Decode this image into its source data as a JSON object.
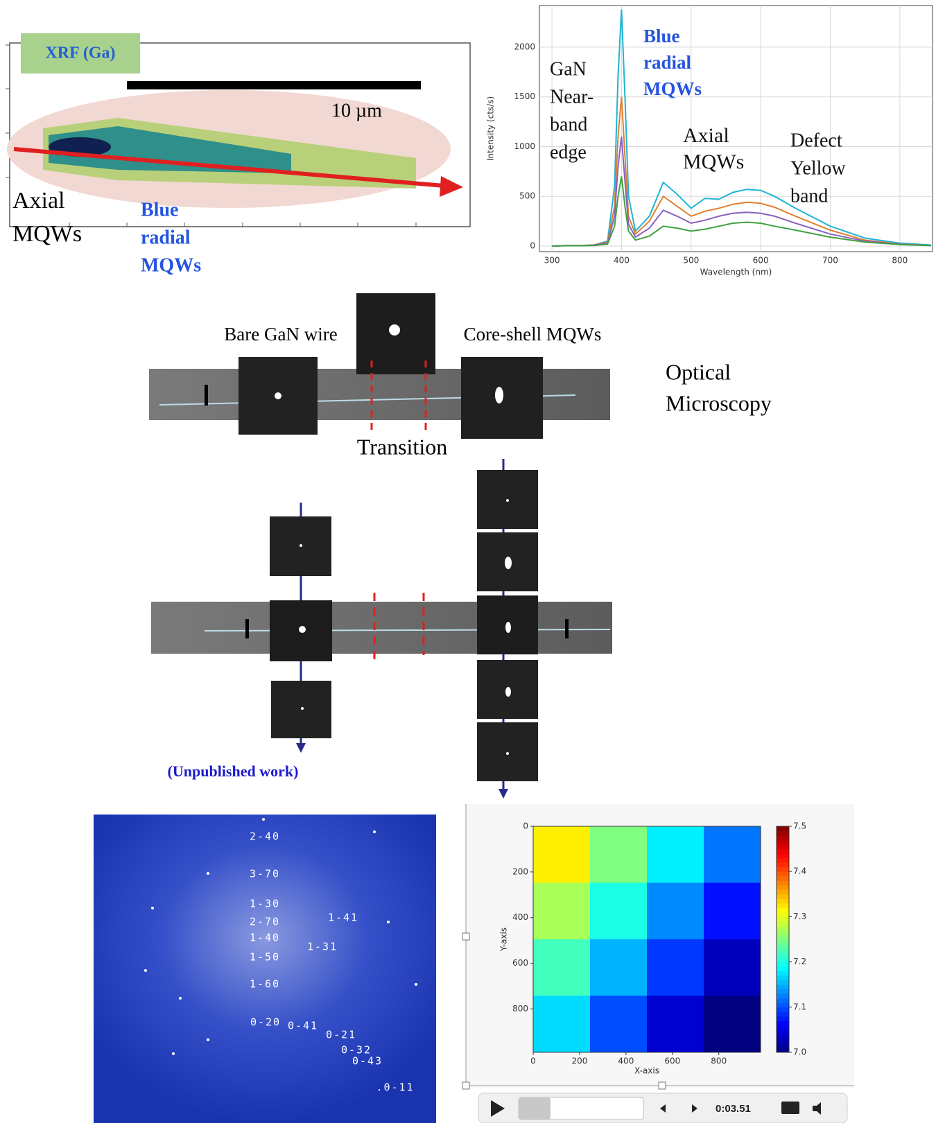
{
  "xrf_map": {
    "label": "XRF (Ga)",
    "scale_bar": "10 µm",
    "axial_label": [
      "Axial",
      "MQWs"
    ],
    "radial_label": [
      "Blue",
      "radial",
      "MQWs"
    ]
  },
  "chart_data": [
    {
      "type": "line",
      "x_label": "Wavelength (nm)",
      "y_label": "Intensity (cts/s)",
      "x": [
        300,
        320,
        340,
        360,
        380,
        390,
        395,
        400,
        405,
        410,
        420,
        440,
        460,
        480,
        500,
        520,
        540,
        560,
        580,
        600,
        620,
        650,
        700,
        750,
        800,
        845
      ],
      "series": [
        {
          "color": "#1fb4d4",
          "values": [
            0,
            5,
            5,
            10,
            50,
            600,
            1700,
            2380,
            1500,
            500,
            150,
            300,
            640,
            520,
            380,
            480,
            470,
            540,
            570,
            560,
            500,
            380,
            200,
            80,
            30,
            10
          ]
        },
        {
          "color": "#e08030",
          "values": [
            0,
            5,
            5,
            10,
            40,
            400,
            1100,
            1500,
            900,
            300,
            120,
            250,
            500,
            400,
            300,
            350,
            380,
            420,
            440,
            430,
            390,
            300,
            160,
            60,
            20,
            5
          ]
        },
        {
          "color": "#8a60c0",
          "values": [
            0,
            4,
            4,
            8,
            30,
            300,
            800,
            1100,
            650,
            220,
            90,
            180,
            360,
            300,
            230,
            260,
            300,
            330,
            340,
            330,
            300,
            230,
            120,
            50,
            18,
            5
          ]
        },
        {
          "color": "#3fa040",
          "values": [
            0,
            3,
            3,
            5,
            20,
            200,
            500,
            700,
            400,
            150,
            60,
            100,
            200,
            180,
            150,
            170,
            200,
            230,
            240,
            230,
            200,
            160,
            90,
            40,
            15,
            5
          ]
        }
      ],
      "xlim": [
        282,
        847
      ],
      "ylim": [
        -56,
        2418
      ],
      "xticks": [
        300,
        400,
        500,
        600,
        700,
        800
      ],
      "yticks": [
        0,
        500,
        1000,
        1500,
        2000
      ],
      "grid": true,
      "annotations": [
        {
          "text": [
            "GaN",
            "Near-",
            "band",
            "edge"
          ],
          "color": "#111111"
        },
        {
          "text": [
            "Blue",
            "radial",
            "MQWs"
          ],
          "color": "#2454e0"
        },
        {
          "text": [
            "Axial",
            "MQWs"
          ],
          "color": "#111111"
        },
        {
          "text": [
            "Defect",
            "Yellow",
            "band"
          ],
          "color": "#111111"
        }
      ]
    },
    {
      "type": "heatmap",
      "x_label": "X-axis",
      "y_label": "Y-axis",
      "z": [
        [
          7.32,
          7.25,
          7.18,
          7.12
        ],
        [
          7.27,
          7.2,
          7.13,
          7.07
        ],
        [
          7.22,
          7.15,
          7.09,
          7.03
        ],
        [
          7.17,
          7.1,
          7.04,
          7.0
        ]
      ],
      "xlim": [
        0,
        980
      ],
      "ylim": [
        990,
        0
      ],
      "xticks": [
        0,
        200,
        400,
        600,
        800
      ],
      "yticks": [
        0,
        200,
        400,
        600,
        800
      ],
      "clim": [
        7.0,
        7.5
      ],
      "cticks": [
        {
          "value": 7.0,
          "label": "7.0"
        },
        7.1,
        7.2,
        7.3,
        7.4,
        7.5
      ]
    }
  ],
  "optical": {
    "bare_label": "Bare GaN wire",
    "coreshell_label": "Core-shell MQWs",
    "section_label": [
      "Optical",
      "Microscopy"
    ],
    "transition_label": "Transition",
    "note": "(Unpublished work)"
  },
  "diffraction": {
    "spots": [
      "2-40",
      "3-70",
      "1-30",
      "2-70",
      "1-40",
      "1-50",
      "1-60",
      "0-20",
      "0-41",
      "0-21",
      "0-32",
      "0-43",
      ".0-11",
      "1-41",
      "1-31"
    ]
  },
  "player": {
    "time": "0:03.51"
  }
}
